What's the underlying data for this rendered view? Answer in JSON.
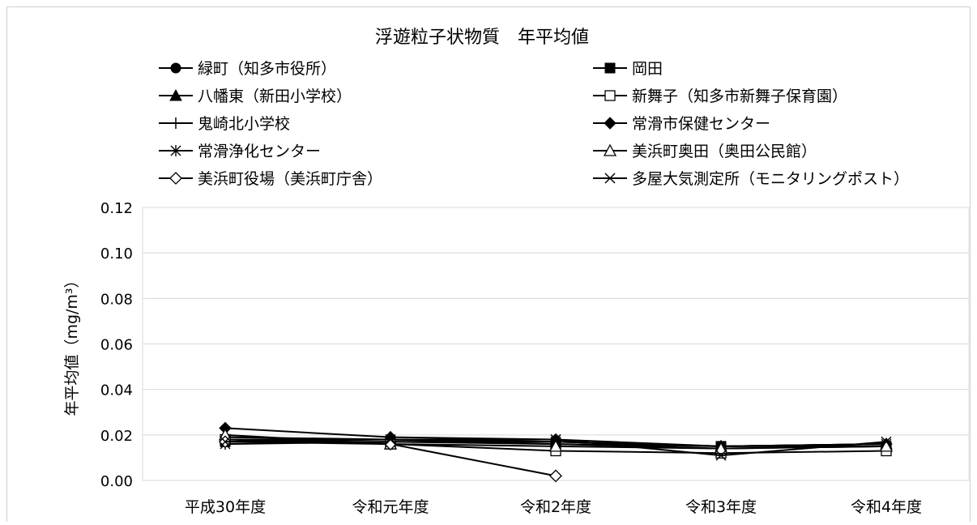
{
  "chart_data": {
    "type": "line",
    "title": "浮遊粒子状物質　年平均値",
    "ylabel": "年平均値（mg/m³）",
    "xlabel": "",
    "categories": [
      "平成30年度",
      "令和元年度",
      "令和2年度",
      "令和3年度",
      "令和4年度"
    ],
    "ylim": [
      0,
      0.12
    ],
    "yticks": [
      "0.00",
      "0.02",
      "0.04",
      "0.06",
      "0.08",
      "0.10",
      "0.12"
    ],
    "grid": true,
    "legend_position": "top",
    "colors": {
      "line": "#000000",
      "grid": "#d9d9d9",
      "background": "#ffffff"
    },
    "series": [
      {
        "name": "緑町（知多市役所）",
        "marker": "filled-circle",
        "values": [
          0.018,
          0.018,
          0.016,
          0.014,
          0.015
        ]
      },
      {
        "name": "岡田",
        "marker": "filled-square",
        "values": [
          0.017,
          0.017,
          0.016,
          0.015,
          0.015
        ]
      },
      {
        "name": "八幡東（新田小学校）",
        "marker": "filled-triangle",
        "values": [
          0.019,
          0.018,
          0.017,
          0.015,
          0.016
        ]
      },
      {
        "name": "新舞子（知多市新舞子保育園）",
        "marker": "open-square",
        "values": [
          0.018,
          0.016,
          0.013,
          0.012,
          0.013
        ]
      },
      {
        "name": "鬼崎北小学校",
        "marker": "plus",
        "values": [
          0.018,
          0.018,
          0.017,
          0.015,
          0.016
        ]
      },
      {
        "name": "常滑市保健センター",
        "marker": "filled-diamond",
        "values": [
          0.023,
          0.019,
          0.018,
          0.015,
          0.016
        ]
      },
      {
        "name": "常滑浄化センター",
        "marker": "asterisk",
        "values": [
          0.016,
          0.017,
          0.017,
          0.015,
          0.016
        ]
      },
      {
        "name": "美浜町奥田（奥田公民館）",
        "marker": "open-triangle",
        "values": [
          0.02,
          0.016,
          0.015,
          0.014,
          0.015
        ]
      },
      {
        "name": "美浜町役場（美浜町庁舎）",
        "marker": "open-diamond",
        "values": [
          0.017,
          0.016,
          0.002,
          null,
          null
        ]
      },
      {
        "name": "多屋大気測定所（モニタリングポスト）",
        "marker": "x",
        "values": [
          0.017,
          0.018,
          0.018,
          0.011,
          0.017
        ]
      }
    ]
  }
}
